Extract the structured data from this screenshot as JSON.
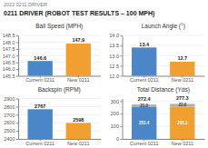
{
  "title": "0211 DRIVER (ROBOT TEST RESULTS – 100 MPH)",
  "subtitle": "2022 0211 DRIVER",
  "chart_data": [
    {
      "type": "bar",
      "title": "Ball Speed (MPH)",
      "categories": [
        "Current 0211",
        "New 0211"
      ],
      "values": [
        146.6,
        147.9
      ],
      "colors": [
        "#4a86c8",
        "#f0a030"
      ],
      "ylim": [
        145.5,
        148.5
      ],
      "yticks": [
        145.5,
        {
          "value": 146,
          "label": "146.0"
        },
        146.5,
        {
          "value": 147,
          "label": "147.0"
        },
        147.5,
        {
          "value": 148,
          "label": "148.0"
        },
        148.5
      ],
      "grid": true,
      "data_labels": true
    },
    {
      "type": "bar",
      "title": "Launch Angle (°)",
      "categories": [
        "Current 0211",
        "New 0211"
      ],
      "values": [
        13.4,
        12.7
      ],
      "colors": [
        "#4a86c8",
        "#f0a030"
      ],
      "ylim": [
        12.0,
        14.0
      ],
      "yticks": [
        {
          "value": 12,
          "label": "12.0"
        },
        12.5,
        {
          "value": 13,
          "label": "13.0"
        },
        13.5,
        {
          "value": 14,
          "label": "14.0"
        }
      ],
      "grid": true,
      "data_labels": true
    },
    {
      "type": "bar",
      "title": "Backspin (RPM)",
      "categories": [
        "Current 0211",
        "New 0211"
      ],
      "values": [
        2767,
        2598
      ],
      "colors": [
        "#4a86c8",
        "#f0a030"
      ],
      "ylim": [
        2400,
        2900
      ],
      "yticks": [
        2400,
        2500,
        2600,
        2700,
        2800,
        2900
      ],
      "grid": true,
      "data_labels": true
    },
    {
      "type": "bar",
      "title": "Total Distance (Yds)",
      "categories": [
        "Current 0211",
        "New 0211"
      ],
      "stacked": true,
      "series": [
        {
          "values": [
            251.4,
            255.3
          ],
          "colors": [
            "#4a86c8",
            "#f0a030"
          ]
        },
        {
          "values": [
            21.0,
            22.0
          ],
          "color": "#b0b0a8",
          "value_labels": [
            "21.0",
            "22.0"
          ]
        }
      ],
      "totals": [
        272.4,
        277.3
      ],
      "ylim": [
        0,
        320
      ],
      "yticks": [
        0,
        100,
        200,
        300
      ],
      "grid": true,
      "data_labels": true
    }
  ]
}
